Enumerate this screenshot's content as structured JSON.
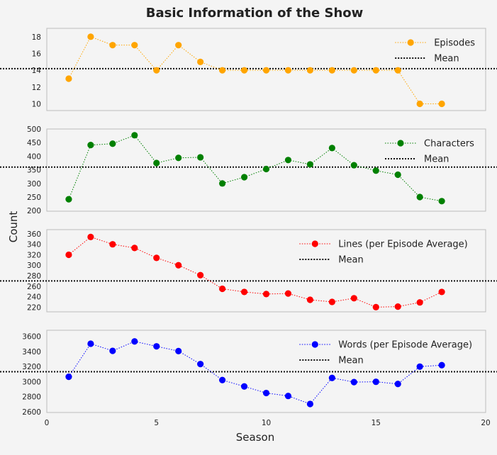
{
  "chart_data": {
    "type": "line",
    "title": "Basic Information of the Show",
    "xlabel": "Season",
    "ylabel": "Count",
    "xlim": [
      0,
      20
    ],
    "xticks": [
      0,
      5,
      10,
      15,
      20
    ],
    "grid": false,
    "legend_position": "top-right",
    "panels": [
      {
        "series": [
          {
            "name": "Episodes",
            "color": "#ffa500",
            "x": [
              1,
              2,
              3,
              4,
              5,
              6,
              7,
              8,
              9,
              10,
              11,
              12,
              13,
              14,
              15,
              16,
              17,
              18
            ],
            "values": [
              13,
              18,
              17,
              17,
              14,
              17,
              15,
              14,
              14,
              14,
              14,
              14,
              14,
              14,
              14,
              14,
              10,
              10
            ]
          }
        ],
        "mean": 14.2,
        "mean_label": "Mean",
        "ylim": [
          9.2,
          19
        ],
        "yticks": [
          10,
          12,
          14,
          16,
          18
        ]
      },
      {
        "series": [
          {
            "name": "Characters",
            "color": "#008000",
            "x": [
              1,
              2,
              3,
              4,
              5,
              6,
              7,
              8,
              9,
              10,
              11,
              12,
              13,
              14,
              15,
              16,
              17,
              18
            ],
            "values": [
              242,
              441,
              446,
              477,
              375,
              394,
              396,
              300,
              323,
              353,
              386,
              370,
              430,
              367,
              347,
              332,
              250,
              235
            ]
          }
        ],
        "mean": 360,
        "mean_label": "Mean",
        "ylim": [
          198,
          500
        ],
        "yticks": [
          200,
          250,
          300,
          350,
          400,
          450,
          500
        ]
      },
      {
        "series": [
          {
            "name": "Lines (per Episode Average)",
            "color": "#ff0000",
            "x": [
              1,
              2,
              3,
              4,
              5,
              6,
              7,
              8,
              9,
              10,
              11,
              12,
              13,
              14,
              15,
              16,
              17,
              18
            ],
            "values": [
              320,
              354,
              340,
              333,
              314,
              300,
              281,
              255,
              249,
              245,
              246,
              234,
              230,
              237,
              220,
              221,
              229,
              249
            ]
          }
        ],
        "mean": 270,
        "mean_label": "Mean",
        "ylim": [
          211,
          368
        ],
        "yticks": [
          220,
          240,
          260,
          280,
          300,
          320,
          340,
          360
        ]
      },
      {
        "series": [
          {
            "name": "Words (per Episode Average)",
            "color": "#0000ff",
            "x": [
              1,
              2,
              3,
              4,
              5,
              6,
              7,
              8,
              9,
              10,
              11,
              12,
              13,
              14,
              15,
              16,
              17,
              18
            ],
            "values": [
              3063,
              3502,
              3407,
              3532,
              3467,
              3404,
              3232,
              3020,
              2935,
              2848,
              2809,
              2703,
              3048,
              2993,
              2997,
              2968,
              3198,
              3217
            ]
          }
        ],
        "mean": 3130,
        "mean_label": "Mean",
        "ylim": [
          2590,
          3680
        ],
        "yticks": [
          2600,
          2800,
          3000,
          3200,
          3400,
          3600
        ]
      }
    ]
  }
}
